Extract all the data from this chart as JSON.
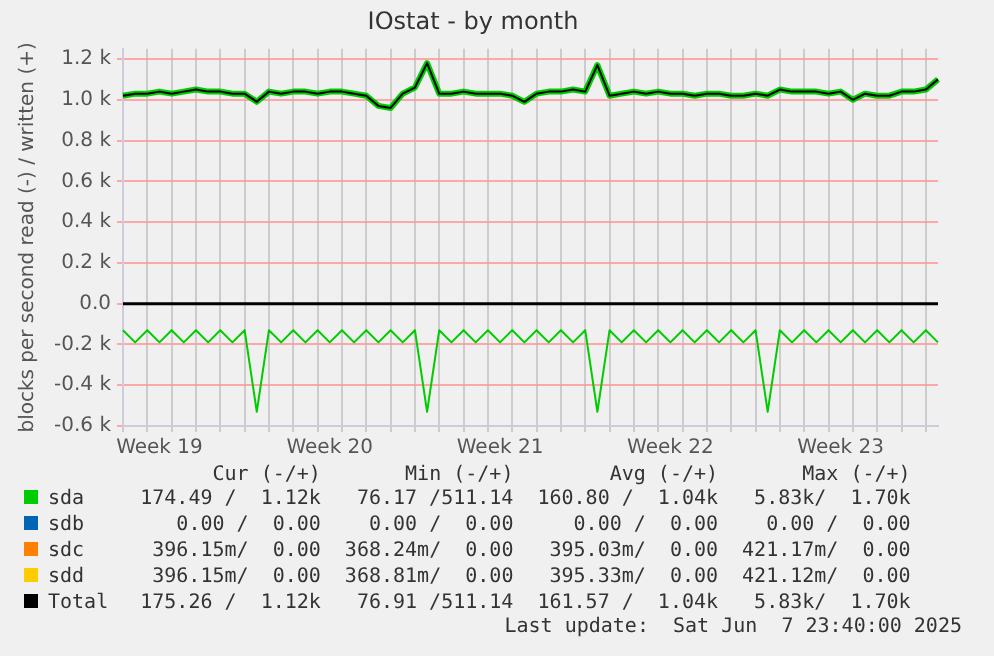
{
  "chart_data": {
    "type": "line",
    "title": "IOstat - by month",
    "ylabel": "blocks per second read (-) / written (+)",
    "categories": [
      null,
      null,
      null,
      "Week 19",
      null,
      null,
      null,
      null,
      null,
      null,
      null,
      null,
      null,
      null,
      null,
      null,
      null,
      "Week 20",
      null,
      null,
      null,
      null,
      null,
      null,
      null,
      null,
      null,
      null,
      null,
      null,
      null,
      "Week 21",
      null,
      null,
      null,
      null,
      null,
      null,
      null,
      null,
      null,
      null,
      null,
      null,
      null,
      "Week 22",
      null,
      null,
      null,
      null,
      null,
      null,
      null,
      null,
      null,
      null,
      null,
      null,
      null,
      "Week 23",
      null,
      null,
      null,
      null,
      null,
      null,
      null,
      null
    ],
    "ylim": [
      -0.6,
      1.25
    ],
    "yticks": [
      {
        "value": -0.6,
        "label": "-0.6 k"
      },
      {
        "value": -0.4,
        "label": "-0.4 k"
      },
      {
        "value": -0.2,
        "label": "-0.2 k"
      },
      {
        "value": 0,
        "label": "0.0"
      },
      {
        "value": 0.2,
        "label": "0.2 k"
      },
      {
        "value": 0.4,
        "label": "0.4 k"
      },
      {
        "value": 0.6,
        "label": "0.6 k"
      },
      {
        "value": 0.8,
        "label": "0.8 k"
      },
      {
        "value": 1.0,
        "label": "1.0 k"
      },
      {
        "value": 1.2,
        "label": "1.2 k"
      }
    ],
    "grid": true,
    "legend": "bottom",
    "marker": "none",
    "line_style": "solid",
    "ref_lines": [
      {
        "axis": "y",
        "value": 0,
        "color": "#000000"
      }
    ],
    "series": [
      {
        "name": "sda",
        "color": "#00cc00",
        "values": [
          1.02,
          1.03,
          1.03,
          1.04,
          1.03,
          1.04,
          1.05,
          1.04,
          1.04,
          1.03,
          1.03,
          0.99,
          1.04,
          1.03,
          1.04,
          1.04,
          1.03,
          1.04,
          1.04,
          1.03,
          1.02,
          0.97,
          0.96,
          1.03,
          1.06,
          1.18,
          1.03,
          1.03,
          1.04,
          1.03,
          1.03,
          1.03,
          1.02,
          0.99,
          1.03,
          1.04,
          1.04,
          1.05,
          1.04,
          1.17,
          1.02,
          1.03,
          1.04,
          1.03,
          1.04,
          1.03,
          1.03,
          1.02,
          1.03,
          1.03,
          1.02,
          1.02,
          1.03,
          1.02,
          1.05,
          1.04,
          1.04,
          1.04,
          1.03,
          1.04,
          1.0,
          1.03,
          1.02,
          1.02,
          1.04,
          1.04,
          1.05,
          1.1
        ]
      },
      {
        "color": "#00cc00",
        "values": [
          -0.13,
          -0.19,
          -0.13,
          -0.19,
          -0.13,
          -0.19,
          -0.13,
          -0.19,
          -0.13,
          -0.19,
          -0.13,
          -0.53,
          -0.13,
          -0.19,
          -0.13,
          -0.19,
          -0.13,
          -0.19,
          -0.13,
          -0.19,
          -0.13,
          -0.19,
          -0.13,
          -0.19,
          -0.13,
          -0.53,
          -0.13,
          -0.19,
          -0.13,
          -0.19,
          -0.13,
          -0.19,
          -0.13,
          -0.19,
          -0.13,
          -0.19,
          -0.13,
          -0.19,
          -0.13,
          -0.53,
          -0.13,
          -0.19,
          -0.13,
          -0.19,
          -0.13,
          -0.19,
          -0.13,
          -0.19,
          -0.13,
          -0.19,
          -0.13,
          -0.19,
          -0.13,
          -0.53,
          -0.13,
          -0.19,
          -0.13,
          -0.19,
          -0.13,
          -0.19,
          -0.13,
          -0.19,
          -0.13,
          -0.19,
          -0.13,
          -0.19,
          -0.13,
          -0.19
        ]
      },
      {
        "name": "sdb",
        "color": "#0066b3",
        "values": [
          null,
          null,
          null,
          null,
          null,
          null,
          null,
          null,
          null,
          null,
          null,
          null,
          null,
          null,
          null,
          null,
          null,
          null,
          null,
          null,
          null,
          null,
          null,
          null,
          null,
          null,
          null,
          null,
          null,
          null,
          null,
          null,
          null,
          null,
          null,
          null,
          null,
          null,
          null,
          null,
          null,
          null,
          null,
          null,
          null,
          null,
          null,
          null,
          null,
          null,
          null,
          null,
          null,
          null,
          null,
          null,
          null,
          null,
          null,
          null,
          null,
          null,
          null,
          null,
          null,
          null,
          null,
          null
        ]
      },
      {
        "name": "sdc",
        "color": "#ff8000",
        "values": [
          null,
          null,
          null,
          null,
          null,
          null,
          null,
          null,
          null,
          null,
          null,
          null,
          null,
          null,
          null,
          null,
          null,
          null,
          null,
          null,
          null,
          null,
          null,
          null,
          null,
          null,
          null,
          null,
          null,
          null,
          null,
          null,
          null,
          null,
          null,
          null,
          null,
          null,
          null,
          null,
          null,
          null,
          null,
          null,
          null,
          null,
          null,
          null,
          null,
          null,
          null,
          null,
          null,
          null,
          null,
          null,
          null,
          null,
          null,
          null,
          null,
          null,
          null,
          null,
          null,
          null,
          null,
          null
        ]
      },
      {
        "name": "sdd",
        "color": "#ffcc00",
        "values": [
          null,
          null,
          null,
          null,
          null,
          null,
          null,
          null,
          null,
          null,
          null,
          null,
          null,
          null,
          null,
          null,
          null,
          null,
          null,
          null,
          null,
          null,
          null,
          null,
          null,
          null,
          null,
          null,
          null,
          null,
          null,
          null,
          null,
          null,
          null,
          null,
          null,
          null,
          null,
          null,
          null,
          null,
          null,
          null,
          null,
          null,
          null,
          null,
          null,
          null,
          null,
          null,
          null,
          null,
          null,
          null,
          null,
          null,
          null,
          null,
          null,
          null,
          null,
          null,
          null,
          null,
          null,
          null
        ]
      },
      {
        "name": "Total",
        "color": "#000000",
        "values": [
          1.02,
          1.03,
          1.03,
          1.04,
          1.03,
          1.04,
          1.05,
          1.04,
          1.04,
          1.03,
          1.03,
          0.99,
          1.04,
          1.03,
          1.04,
          1.04,
          1.03,
          1.04,
          1.04,
          1.03,
          1.02,
          0.97,
          0.96,
          1.03,
          1.06,
          1.18,
          1.03,
          1.03,
          1.04,
          1.03,
          1.03,
          1.03,
          1.02,
          0.99,
          1.03,
          1.04,
          1.04,
          1.05,
          1.04,
          1.17,
          1.02,
          1.03,
          1.04,
          1.03,
          1.04,
          1.03,
          1.03,
          1.02,
          1.03,
          1.03,
          1.02,
          1.02,
          1.03,
          1.02,
          1.05,
          1.04,
          1.04,
          1.04,
          1.03,
          1.04,
          1.0,
          1.03,
          1.02,
          1.02,
          1.04,
          1.04,
          1.05,
          1.1
        ]
      }
    ],
    "annotations": [
      "Cur (-/+)",
      "Min (-/+)",
      "Avg (-/+)",
      "Max (-/+)",
      "174.49 /  1.12k",
      "76.17 /511.14",
      "160.80 /  1.04k",
      "5.83k/  1.70k",
      "0.00 /  0.00",
      "0.00 /  0.00",
      "0.00 /  0.00",
      "0.00 /  0.00",
      "396.15m/  0.00",
      "368.24m/  0.00",
      "395.03m/  0.00",
      "421.17m/  0.00",
      "396.15m/  0.00",
      "368.81m/  0.00",
      "395.33m/  0.00",
      "421.12m/  0.00",
      "175.26 /  1.12k",
      "76.91 /511.14",
      "161.57 /  1.04k",
      "5.83k/  1.70k",
      "Last update:  Sat Jun  7 23:40:00 2025"
    ]
  }
}
